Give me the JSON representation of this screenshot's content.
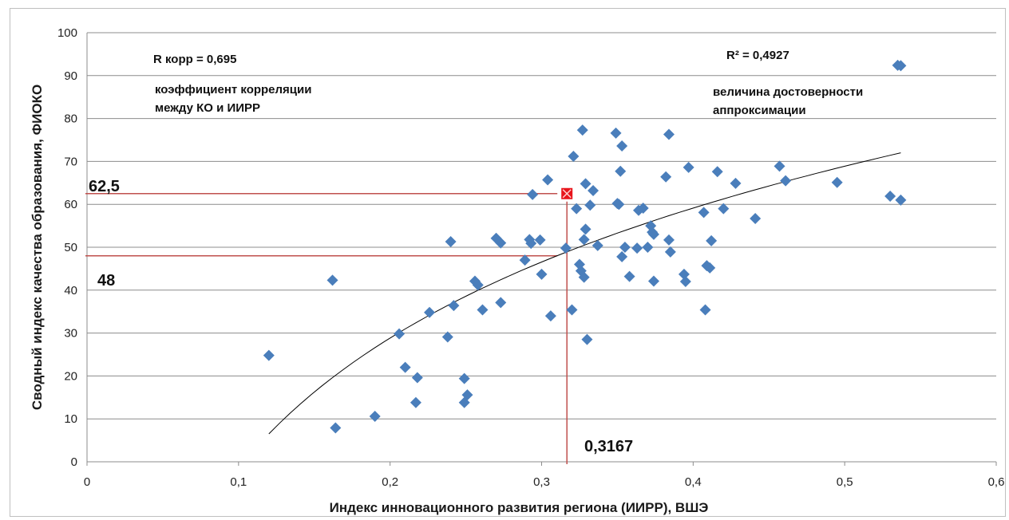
{
  "chart_data": {
    "type": "scatter",
    "xlabel": "Индекс инновационного развития региона (ИИРР), ВШЭ",
    "ylabel": "Сводный индекс качества образования, ФИОКО",
    "xlim": [
      0,
      0.6
    ],
    "ylim": [
      0,
      100
    ],
    "x_ticks": [
      "0",
      "0,1",
      "0,2",
      "0,3",
      "0,4",
      "0,5",
      "0,6"
    ],
    "y_ticks": [
      "0",
      "10",
      "20",
      "30",
      "40",
      "50",
      "60",
      "70",
      "80",
      "90",
      "100"
    ],
    "grid": "horizontal",
    "marker_color": "#4a7ebb",
    "highlight_color": "#e8141b",
    "refline_color": "#c0504d",
    "trend": {
      "type": "logarithmic",
      "x_from": 0.12,
      "x_to": 0.537,
      "y_from": 6.5,
      "y_to": 72
    },
    "highlight_point": {
      "x": 0.3167,
      "y": 62.5
    },
    "ref_lines": [
      {
        "y": 62.5,
        "x_end": 0.3167
      },
      {
        "y": 48,
        "x_end": 0.3167
      }
    ],
    "points": [
      [
        0.12,
        24.8
      ],
      [
        0.162,
        42.3
      ],
      [
        0.164,
        7.9
      ],
      [
        0.19,
        10.6
      ],
      [
        0.206,
        29.8
      ],
      [
        0.21,
        22
      ],
      [
        0.217,
        13.8
      ],
      [
        0.218,
        19.6
      ],
      [
        0.226,
        34.8
      ],
      [
        0.238,
        29.1
      ],
      [
        0.24,
        51.3
      ],
      [
        0.242,
        36.4
      ],
      [
        0.249,
        13.8
      ],
      [
        0.249,
        19.4
      ],
      [
        0.251,
        15.6
      ],
      [
        0.256,
        42.1
      ],
      [
        0.258,
        41.2
      ],
      [
        0.261,
        35.4
      ],
      [
        0.27,
        52.1
      ],
      [
        0.273,
        51
      ],
      [
        0.273,
        37.1
      ],
      [
        0.289,
        47
      ],
      [
        0.292,
        51.8
      ],
      [
        0.293,
        50.9
      ],
      [
        0.294,
        62.3
      ],
      [
        0.299,
        51.7
      ],
      [
        0.3,
        43.7
      ],
      [
        0.304,
        65.7
      ],
      [
        0.306,
        34
      ],
      [
        0.316,
        49.8
      ],
      [
        0.32,
        35.4
      ],
      [
        0.321,
        71.2
      ],
      [
        0.323,
        59
      ],
      [
        0.325,
        46
      ],
      [
        0.326,
        44.5
      ],
      [
        0.327,
        77.3
      ],
      [
        0.328,
        43
      ],
      [
        0.328,
        51.8
      ],
      [
        0.329,
        54.2
      ],
      [
        0.329,
        64.8
      ],
      [
        0.33,
        28.5
      ],
      [
        0.332,
        59.8
      ],
      [
        0.334,
        63.2
      ],
      [
        0.337,
        50.4
      ],
      [
        0.349,
        76.6
      ],
      [
        0.35,
        60.2
      ],
      [
        0.351,
        60
      ],
      [
        0.352,
        67.7
      ],
      [
        0.353,
        73.6
      ],
      [
        0.353,
        47.8
      ],
      [
        0.355,
        50
      ],
      [
        0.358,
        43.2
      ],
      [
        0.363,
        49.8
      ],
      [
        0.364,
        58.6
      ],
      [
        0.367,
        59.1
      ],
      [
        0.37,
        50
      ],
      [
        0.372,
        55
      ],
      [
        0.373,
        53.5
      ],
      [
        0.374,
        42.1
      ],
      [
        0.374,
        53
      ],
      [
        0.382,
        66.4
      ],
      [
        0.384,
        76.3
      ],
      [
        0.384,
        51.7
      ],
      [
        0.385,
        48.9
      ],
      [
        0.394,
        43.7
      ],
      [
        0.395,
        42
      ],
      [
        0.397,
        68.6
      ],
      [
        0.407,
        58.1
      ],
      [
        0.408,
        35.4
      ],
      [
        0.409,
        45.7
      ],
      [
        0.411,
        45.2
      ],
      [
        0.412,
        51.5
      ],
      [
        0.416,
        67.6
      ],
      [
        0.42,
        59
      ],
      [
        0.428,
        64.9
      ],
      [
        0.441,
        56.7
      ],
      [
        0.457,
        68.9
      ],
      [
        0.461,
        65.5
      ],
      [
        0.495,
        65.1
      ],
      [
        0.53,
        61.9
      ],
      [
        0.535,
        92.4
      ],
      [
        0.537,
        92.3
      ],
      [
        0.537,
        61
      ]
    ]
  },
  "annotations": {
    "r_corr": "R корр = 0,695",
    "corr_line1": "коэффициент корреляции",
    "corr_line2": "между  КО и ИИРР",
    "r2": "R² = 0,4927",
    "approx_line1": "величина достоверности",
    "approx_line2": "аппроксимации",
    "label_625": "62,5",
    "label_48": "48",
    "label_x": "0,3167"
  }
}
